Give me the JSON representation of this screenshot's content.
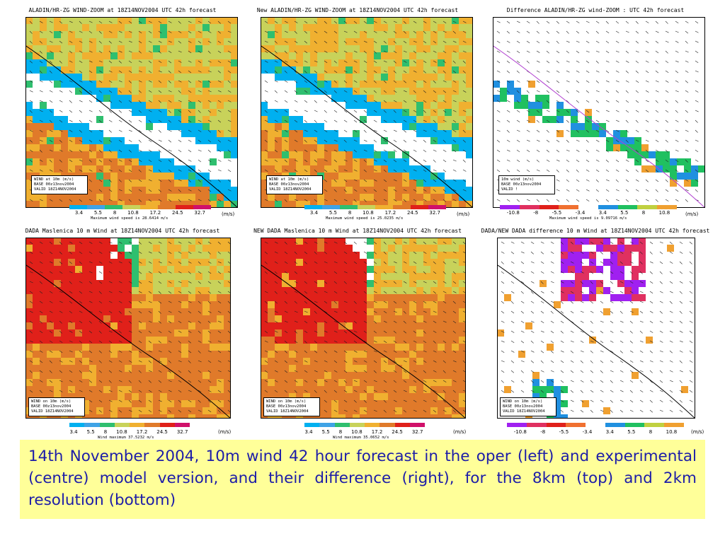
{
  "panels": [
    {
      "title": "ALADIN/HR-ZG WIND-ZOOM at 18Z14NOV2004 UTC 42h forecast",
      "legend": [
        "WIND at 10m (m/s)",
        "BASE 00z13nov2004",
        "VALID 18Z14NOV2004"
      ],
      "colorbar_labels": [
        "3.4",
        "5.5",
        "8",
        "10.8",
        "17.2",
        "24.5",
        "32.7"
      ],
      "unit": "(m/s)",
      "note": "Maximum wind speed is 28.6414 m/s",
      "type": "speed8"
    },
    {
      "title": "New ALADIN/HR-ZG WIND-ZOOM at 18Z14NOV2004 UTC 42h forecast",
      "legend": [
        "WIND at 10m (m/s)",
        "BASE 00z13nov2004",
        "VALID 18Z14NOV2004"
      ],
      "colorbar_labels": [
        "3.4",
        "5.5",
        "8",
        "10.8",
        "17.2",
        "24.5",
        "32.7"
      ],
      "unit": "(m/s)",
      "note": "Maximum wind speed is 25.0235 m/s",
      "type": "speed8"
    },
    {
      "title": "Difference ALADIN/HR-ZG wind-ZOOM : UTC 42h forecast",
      "legend": [
        "10m wind (m/s)",
        "BASE 00z13nov2004",
        "VALID !"
      ],
      "colorbar_labels": [
        "-10.8",
        "-8",
        "-5.5",
        "-3.4",
        "3.4",
        "5.5",
        "8",
        "10.8"
      ],
      "unit": "(m/s)",
      "note": "Maximum wind speed is 9.09716 m/s",
      "type": "diff8"
    },
    {
      "title": "DADA Maslenica 10 m Wind at 18Z14NOV2004 UTC 42h forecast",
      "legend": [
        "WIND on 10m (m/s)",
        "BASE 00z13nov2004",
        "VALID 18Z14NOV2004"
      ],
      "colorbar_labels": [
        "3.4",
        "5.5",
        "8",
        "10.8",
        "17.2",
        "24.5",
        "32.7"
      ],
      "unit": "(m/s)",
      "note": "Wind maximum 37.5232 m/s",
      "type": "speed2"
    },
    {
      "title": "NEW DADA Maslenica 10 m Wind at 18Z14NOV2004 UTC 42h forecast",
      "legend": [
        "WIND on 10m (m/s)",
        "BASE 00z13nov2004",
        "VALID 18Z14NOV2004"
      ],
      "colorbar_labels": [
        "3.4",
        "5.5",
        "8",
        "10.8",
        "17.2",
        "24.5",
        "32.7"
      ],
      "unit": "(m/s)",
      "note": "Wind maximum 35.0652 m/s",
      "type": "speed2"
    },
    {
      "title": "DADA/NEW DADA difference 10 m Wind at 18Z14NOV2004 UTC 42h forecast",
      "legend": [
        "WIND on 10m (m/s)",
        "BASE 00z13nov2004",
        "VALID 18Z14NOV2004"
      ],
      "colorbar_labels": [
        "-10.8",
        "-8",
        "-5.5",
        "-3.4",
        "3.4",
        "5.5",
        "8",
        "10.8"
      ],
      "unit": "(m/s)",
      "note": "",
      "type": "diff2"
    }
  ],
  "colors": {
    "speed": [
      "#00b0f0",
      "#3fa3e6",
      "#2fbf6f",
      "#c8d25a",
      "#f0b030",
      "#e07a2a",
      "#e0201a",
      "#d0106a"
    ],
    "diff": [
      "#a020f0",
      "#e03060",
      "#e0201a",
      "#f07030",
      "#ffffff",
      "#2090e0",
      "#20c060",
      "#c0d040",
      "#f0a030"
    ]
  },
  "caption": "14th November 2004, 10m wind 42 hour forecast in the oper (left) and experimental (centre) model version, and their difference (right), for the 8km (top) and 2km resolution (bottom)"
}
